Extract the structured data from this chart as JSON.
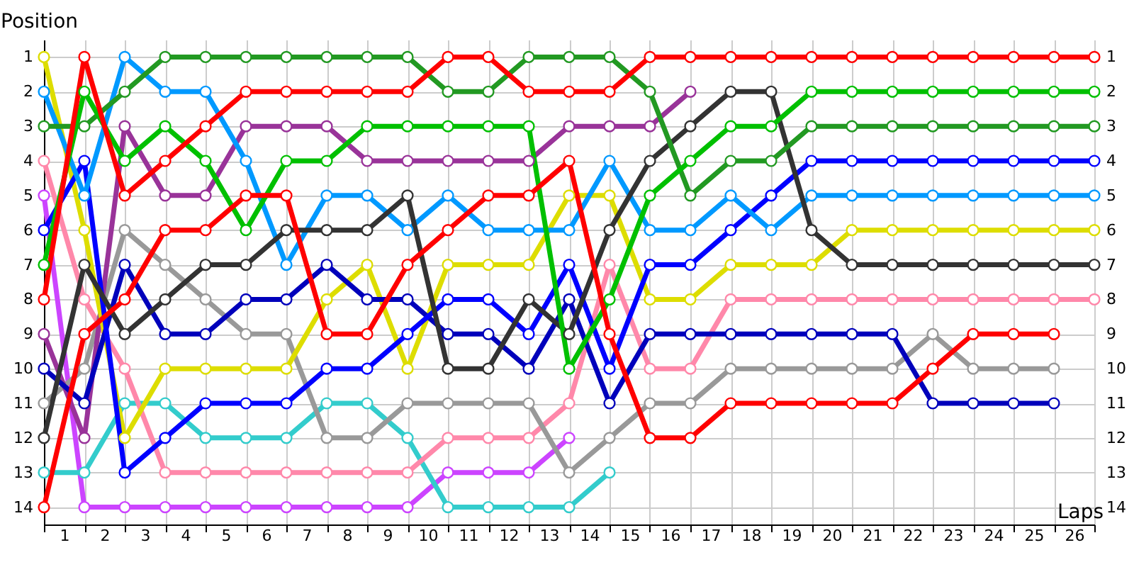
{
  "chart_data": {
    "type": "line",
    "xlabel": "Laps",
    "ylabel": "Position",
    "x": [
      0,
      1,
      2,
      3,
      4,
      5,
      6,
      7,
      8,
      9,
      10,
      11,
      12,
      13,
      14,
      15,
      16,
      17,
      18,
      19,
      20,
      21,
      22,
      23,
      24,
      25,
      26
    ],
    "xlim": [
      0,
      26
    ],
    "ylim": [
      14.5,
      0.5
    ],
    "y2lim": [
      14.5,
      0.5
    ],
    "xticks": [
      {
        "value": 0,
        "label": null
      },
      {
        "value": 0.5,
        "label": "1"
      },
      {
        "value": 1,
        "label": null
      },
      {
        "value": 1.5,
        "label": "2"
      },
      {
        "value": 2,
        "label": null
      },
      {
        "value": 2.5,
        "label": "3"
      },
      {
        "value": 3,
        "label": null
      },
      {
        "value": 3.5,
        "label": "4"
      },
      {
        "value": 4,
        "label": null
      },
      {
        "value": 4.5,
        "label": "5"
      },
      {
        "value": 5,
        "label": null
      },
      {
        "value": 5.5,
        "label": "6"
      },
      {
        "value": 6,
        "label": null
      },
      {
        "value": 6.5,
        "label": "7"
      },
      {
        "value": 7,
        "label": null
      },
      {
        "value": 7.5,
        "label": "8"
      },
      {
        "value": 8,
        "label": null
      },
      {
        "value": 8.5,
        "label": "9"
      },
      {
        "value": 9,
        "label": null
      },
      {
        "value": 9.5,
        "label": "10"
      },
      {
        "value": 10,
        "label": null
      },
      {
        "value": 10.5,
        "label": "11"
      },
      {
        "value": 11,
        "label": null
      },
      {
        "value": 11.5,
        "label": "12"
      },
      {
        "value": 12,
        "label": null
      },
      {
        "value": 12.5,
        "label": "13"
      },
      {
        "value": 13,
        "label": null
      },
      {
        "value": 13.5,
        "label": "14"
      },
      {
        "value": 14,
        "label": null
      },
      {
        "value": 14.5,
        "label": "15"
      },
      {
        "value": 15,
        "label": null
      },
      {
        "value": 15.5,
        "label": "16"
      },
      {
        "value": 16,
        "label": null
      },
      {
        "value": 16.5,
        "label": "17"
      },
      {
        "value": 17,
        "label": null
      },
      {
        "value": 17.5,
        "label": "18"
      },
      {
        "value": 18,
        "label": null
      },
      {
        "value": 18.5,
        "label": "19"
      },
      {
        "value": 19,
        "label": null
      },
      {
        "value": 19.5,
        "label": "20"
      },
      {
        "value": 20,
        "label": null
      },
      {
        "value": 20.5,
        "label": "21"
      },
      {
        "value": 21,
        "label": null
      },
      {
        "value": 21.5,
        "label": "22"
      },
      {
        "value": 22,
        "label": null
      },
      {
        "value": 22.5,
        "label": "23"
      },
      {
        "value": 23,
        "label": null
      },
      {
        "value": 23.5,
        "label": "24"
      },
      {
        "value": 24,
        "label": null
      },
      {
        "value": 24.5,
        "label": "25"
      },
      {
        "value": 25,
        "label": null
      },
      {
        "value": 25.5,
        "label": "26"
      },
      {
        "value": 26,
        "label": null
      }
    ],
    "yticks": [
      1,
      2,
      3,
      4,
      5,
      6,
      7,
      8,
      9,
      10,
      11,
      12,
      13,
      14
    ],
    "y2ticks": [
      1,
      2,
      3,
      4,
      5,
      6,
      7,
      8,
      9,
      10,
      11,
      12,
      13,
      14
    ],
    "grid": true,
    "marker": "circle",
    "line_style": "solid",
    "series": [
      {
        "color": "#cc44ff",
        "values": [
          5,
          14,
          14,
          14,
          14,
          14,
          14,
          14,
          14,
          14,
          13,
          13,
          13,
          12,
          null,
          null,
          null,
          null,
          null,
          null,
          null,
          null,
          null,
          null,
          null,
          null,
          null
        ]
      },
      {
        "color": "#33cccc",
        "values": [
          13,
          13,
          11,
          11,
          12,
          12,
          12,
          11,
          11,
          12,
          14,
          14,
          14,
          14,
          13,
          null,
          null,
          null,
          null,
          null,
          null,
          null,
          null,
          null,
          null,
          null,
          null
        ]
      },
      {
        "color": "#ff88aa",
        "values": [
          4,
          8,
          10,
          13,
          13,
          13,
          13,
          13,
          13,
          13,
          12,
          12,
          12,
          11,
          7,
          10,
          10,
          8,
          8,
          8,
          8,
          8,
          8,
          8,
          8,
          8,
          8
        ]
      },
      {
        "color": "#999999",
        "values": [
          11,
          10,
          6,
          7,
          8,
          9,
          9,
          12,
          12,
          11,
          11,
          11,
          11,
          13,
          12,
          11,
          11,
          10,
          10,
          10,
          10,
          10,
          9,
          10,
          10,
          10,
          null
        ]
      },
      {
        "color": "#993399",
        "values": [
          9,
          12,
          3,
          5,
          5,
          3,
          3,
          3,
          4,
          4,
          4,
          4,
          4,
          3,
          3,
          3,
          2,
          null,
          null,
          null,
          null,
          null,
          null,
          null,
          null,
          null,
          null
        ]
      },
      {
        "color": "#dddd00",
        "values": [
          1,
          6,
          12,
          10,
          10,
          10,
          10,
          8,
          7,
          10,
          7,
          7,
          7,
          5,
          5,
          8,
          8,
          7,
          7,
          7,
          6,
          6,
          6,
          6,
          6,
          6,
          6
        ]
      },
      {
        "color": "#0000bb",
        "values": [
          10,
          11,
          7,
          9,
          9,
          8,
          8,
          7,
          8,
          8,
          9,
          9,
          10,
          8,
          11,
          9,
          9,
          9,
          9,
          9,
          9,
          9,
          11,
          11,
          11,
          11,
          null
        ]
      },
      {
        "color": "#0000ff",
        "values": [
          6,
          4,
          13,
          12,
          11,
          11,
          11,
          10,
          10,
          9,
          8,
          8,
          9,
          7,
          10,
          7,
          7,
          6,
          5,
          4,
          4,
          4,
          4,
          4,
          4,
          4,
          4
        ]
      },
      {
        "color": "#0099ff",
        "values": [
          2,
          5,
          1,
          2,
          2,
          4,
          7,
          5,
          5,
          6,
          5,
          6,
          6,
          6,
          4,
          6,
          6,
          5,
          6,
          5,
          5,
          5,
          5,
          5,
          5,
          5,
          5
        ]
      },
      {
        "color": "#333333",
        "values": [
          12,
          7,
          9,
          8,
          7,
          7,
          6,
          6,
          6,
          5,
          10,
          10,
          8,
          9,
          6,
          4,
          3,
          2,
          2,
          6,
          7,
          7,
          7,
          7,
          7,
          7,
          7
        ]
      },
      {
        "color": "#229922",
        "values": [
          3,
          3,
          2,
          1,
          1,
          1,
          1,
          1,
          1,
          1,
          2,
          2,
          1,
          1,
          1,
          2,
          5,
          4,
          4,
          3,
          3,
          3,
          3,
          3,
          3,
          3,
          3
        ]
      },
      {
        "color": "#00c000",
        "values": [
          7,
          2,
          4,
          3,
          4,
          6,
          4,
          4,
          3,
          3,
          3,
          3,
          3,
          10,
          8,
          5,
          4,
          3,
          3,
          2,
          2,
          2,
          2,
          2,
          2,
          2,
          2
        ]
      },
      {
        "color": "#ff0000",
        "values": [
          14,
          9,
          8,
          6,
          6,
          5,
          5,
          9,
          9,
          7,
          6,
          5,
          5,
          4,
          9,
          12,
          12,
          11,
          11,
          11,
          11,
          11,
          10,
          9,
          9,
          9,
          null
        ]
      },
      {
        "color": "#ff0000",
        "values": [
          8,
          1,
          5,
          4,
          3,
          2,
          2,
          2,
          2,
          2,
          1,
          1,
          2,
          2,
          2,
          1,
          1,
          1,
          1,
          1,
          1,
          1,
          1,
          1,
          1,
          1,
          1
        ]
      }
    ]
  }
}
